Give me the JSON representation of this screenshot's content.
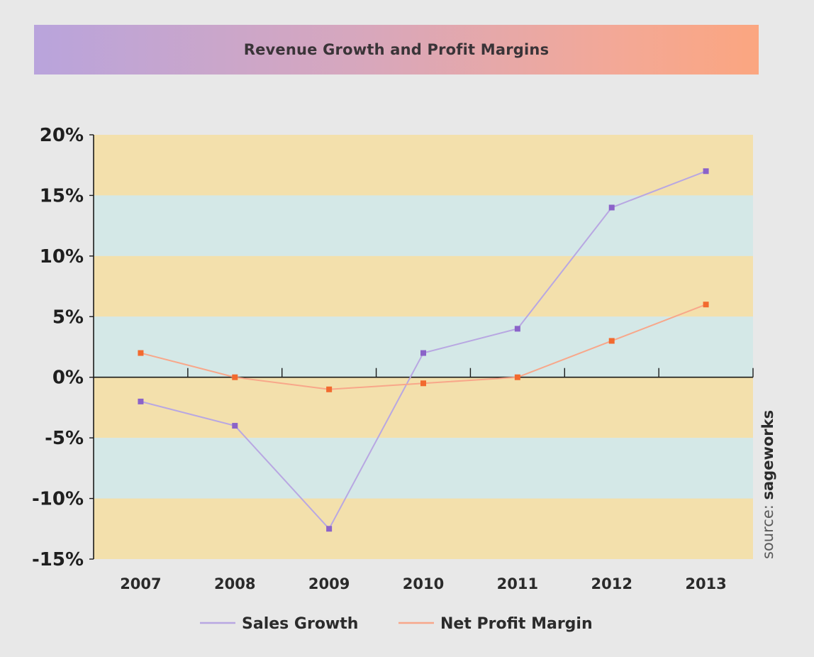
{
  "chart_data": {
    "type": "line",
    "title": "Revenue Growth and Profit Margins",
    "categories": [
      "2007",
      "2008",
      "2009",
      "2010",
      "2011",
      "2012",
      "2013"
    ],
    "series": [
      {
        "name": "Sales Growth",
        "values": [
          -2,
          -4,
          -12.5,
          2,
          4,
          14,
          17
        ],
        "color": "#b8a7e2",
        "marker_color": "#8b63c9"
      },
      {
        "name": "Net Profit Margin",
        "values": [
          2,
          0,
          -1,
          -0.5,
          0,
          3,
          6
        ],
        "color": "#f8a78a",
        "marker_color": "#f26a2f"
      }
    ],
    "ylim": [
      -15,
      20
    ],
    "yticks": [
      "20%",
      "15%",
      "10%",
      "5%",
      "0%",
      "-5%",
      "-10%",
      "-15%"
    ],
    "band_colors": [
      "#f3e0ac",
      "#d4e8e7"
    ],
    "legend_position": "bottom",
    "source_prefix": "source: ",
    "source_brand": "sageworks"
  }
}
